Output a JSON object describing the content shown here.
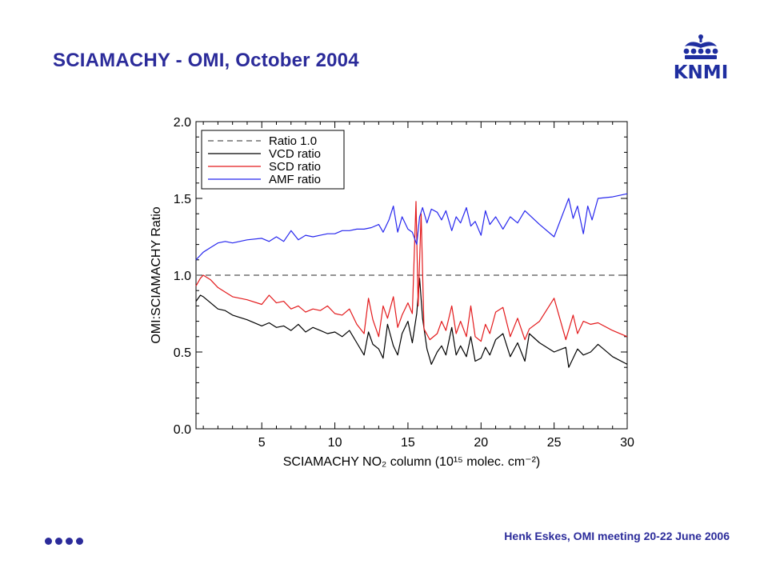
{
  "slide": {
    "title": "SCIAMACHY - OMI, October 2004",
    "logo_text": "KNMI",
    "footer": "Henk Eskes, OMI meeting 20-22 June 2006",
    "colors": {
      "title": "#2b2b9a",
      "logo": "#1f2ea0"
    }
  },
  "chart_data": {
    "type": "line",
    "xlabel": "SCIAMACHY NO₂ column (10¹⁵ molec. cm⁻²)",
    "ylabel": "OMI:SCIAMACHY Ratio",
    "xlim": [
      0.5,
      30
    ],
    "ylim": [
      0,
      2
    ],
    "x_ticks": [
      5,
      10,
      15,
      20,
      25,
      30
    ],
    "x_tick_labels": [
      "5",
      "10",
      "15",
      "20",
      "25",
      "30"
    ],
    "y_ticks": [
      0,
      0.5,
      1,
      1.5,
      2
    ],
    "y_tick_labels": [
      "0.0",
      "0.5",
      "1.0",
      "1.5",
      "2.0"
    ],
    "legend_position": "top-left",
    "grid": false,
    "series": [
      {
        "name": "Ratio 1.0",
        "color": "#707070",
        "dash": true,
        "x": [
          0.5,
          30
        ],
        "y": [
          1.0,
          1.0
        ]
      },
      {
        "name": "VCD ratio",
        "color": "#000000",
        "x": [
          0.5,
          0.8,
          1.0,
          1.5,
          2.0,
          2.5,
          3.0,
          4.0,
          5.0,
          5.5,
          6.0,
          6.5,
          7.0,
          7.5,
          8.0,
          8.5,
          9.0,
          9.5,
          10.0,
          10.5,
          11.0,
          11.5,
          12.0,
          12.3,
          12.6,
          13.0,
          13.3,
          13.6,
          14.0,
          14.3,
          14.6,
          15.0,
          15.3,
          15.6,
          15.8,
          16.0,
          16.3,
          16.6,
          17.0,
          17.3,
          17.6,
          18.0,
          18.3,
          18.6,
          19.0,
          19.3,
          19.6,
          20.0,
          20.3,
          20.6,
          21.0,
          21.5,
          22.0,
          22.5,
          23.0,
          23.3,
          24.0,
          25.0,
          25.8,
          26.0,
          26.3,
          26.6,
          27.0,
          27.5,
          28.0,
          29.0,
          30.0
        ],
        "y": [
          0.83,
          0.87,
          0.86,
          0.82,
          0.78,
          0.77,
          0.74,
          0.71,
          0.67,
          0.69,
          0.66,
          0.67,
          0.64,
          0.68,
          0.63,
          0.66,
          0.64,
          0.62,
          0.63,
          0.6,
          0.64,
          0.56,
          0.48,
          0.63,
          0.55,
          0.52,
          0.46,
          0.68,
          0.54,
          0.48,
          0.62,
          0.7,
          0.56,
          0.75,
          0.98,
          0.72,
          0.52,
          0.42,
          0.5,
          0.54,
          0.48,
          0.66,
          0.48,
          0.54,
          0.47,
          0.6,
          0.44,
          0.46,
          0.53,
          0.48,
          0.58,
          0.62,
          0.47,
          0.56,
          0.44,
          0.62,
          0.56,
          0.5,
          0.53,
          0.4,
          0.46,
          0.52,
          0.48,
          0.5,
          0.55,
          0.47,
          0.42
        ]
      },
      {
        "name": "SCD ratio",
        "color": "#e31a1c",
        "x": [
          0.5,
          0.8,
          1.0,
          1.5,
          2.0,
          2.5,
          3.0,
          4.0,
          5.0,
          5.5,
          6.0,
          6.5,
          7.0,
          7.5,
          8.0,
          8.5,
          9.0,
          9.5,
          10.0,
          10.5,
          11.0,
          11.5,
          12.0,
          12.3,
          12.6,
          13.0,
          13.3,
          13.6,
          14.0,
          14.3,
          14.6,
          15.0,
          15.3,
          15.55,
          15.7,
          15.9,
          16.1,
          16.5,
          17.0,
          17.3,
          17.6,
          18.0,
          18.3,
          18.6,
          19.0,
          19.3,
          19.6,
          20.0,
          20.3,
          20.6,
          21.0,
          21.5,
          22.0,
          22.5,
          23.0,
          23.3,
          24.0,
          25.0,
          25.8,
          26.3,
          26.6,
          27.0,
          27.5,
          28.0,
          29.0,
          30.0
        ],
        "y": [
          0.93,
          0.98,
          1.0,
          0.97,
          0.92,
          0.89,
          0.86,
          0.84,
          0.81,
          0.87,
          0.82,
          0.83,
          0.78,
          0.8,
          0.76,
          0.78,
          0.77,
          0.8,
          0.75,
          0.74,
          0.78,
          0.68,
          0.62,
          0.85,
          0.71,
          0.6,
          0.8,
          0.72,
          0.86,
          0.66,
          0.74,
          0.82,
          0.75,
          1.48,
          0.8,
          1.4,
          0.65,
          0.58,
          0.62,
          0.7,
          0.64,
          0.8,
          0.62,
          0.7,
          0.6,
          0.8,
          0.6,
          0.57,
          0.68,
          0.62,
          0.76,
          0.79,
          0.6,
          0.72,
          0.58,
          0.65,
          0.7,
          0.85,
          0.58,
          0.74,
          0.62,
          0.7,
          0.68,
          0.69,
          0.64,
          0.6
        ]
      },
      {
        "name": "AMF ratio",
        "color": "#2727ee",
        "x": [
          0.5,
          0.8,
          1.0,
          1.5,
          2.0,
          2.5,
          3.0,
          4.0,
          5.0,
          5.5,
          6.0,
          6.5,
          7.0,
          7.5,
          8.0,
          8.5,
          9.0,
          9.5,
          10.0,
          10.5,
          11.0,
          11.5,
          12.0,
          12.5,
          13.0,
          13.3,
          13.7,
          14.0,
          14.3,
          14.6,
          15.0,
          15.3,
          15.6,
          15.8,
          16.0,
          16.3,
          16.6,
          17.0,
          17.3,
          17.6,
          18.0,
          18.3,
          18.6,
          19.0,
          19.3,
          19.6,
          20.0,
          20.3,
          20.6,
          21.0,
          21.5,
          22.0,
          22.5,
          23.0,
          24.0,
          25.0,
          26.0,
          26.3,
          26.6,
          27.0,
          27.3,
          27.6,
          28.0,
          29.0,
          30.0
        ],
        "y": [
          1.1,
          1.13,
          1.15,
          1.18,
          1.21,
          1.22,
          1.21,
          1.23,
          1.24,
          1.22,
          1.25,
          1.22,
          1.29,
          1.23,
          1.26,
          1.25,
          1.26,
          1.27,
          1.27,
          1.29,
          1.29,
          1.3,
          1.3,
          1.31,
          1.33,
          1.28,
          1.36,
          1.45,
          1.28,
          1.38,
          1.3,
          1.28,
          1.2,
          1.38,
          1.44,
          1.34,
          1.43,
          1.41,
          1.36,
          1.42,
          1.29,
          1.38,
          1.34,
          1.44,
          1.32,
          1.35,
          1.26,
          1.42,
          1.33,
          1.38,
          1.3,
          1.38,
          1.34,
          1.42,
          1.33,
          1.25,
          1.5,
          1.37,
          1.45,
          1.27,
          1.45,
          1.36,
          1.5,
          1.51,
          1.53
        ]
      }
    ]
  }
}
